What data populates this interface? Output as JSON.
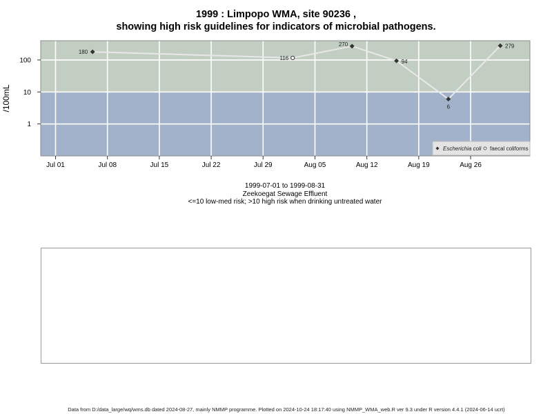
{
  "title_line1": "1999 : Limpopo WMA, site 90236 ,",
  "title_line2": "showing high risk guidelines for indicators of microbial pathogens.",
  "subtitle": {
    "date_range": "1999-07-01 to 1999-08-31",
    "site_name": "Zeekoegat Sewage Effluent",
    "risk_note": "<=10 low-med risk; >10 high risk when drinking untreated water"
  },
  "footer": "Data from D:/data_large/wq/wms.db dated 2024-08-27, mainly NMMP programme. Plotted on 2024-10-24 18:17:40 using NMMP_WMA_web.R ver 9.3 under R version 4.4.1 (2024-06-14 ucrt)",
  "chart_data": {
    "type": "line",
    "ylabel": "/100mL",
    "y_scale": "log10",
    "xlim": [
      "1999-06-29",
      "1999-09-03"
    ],
    "ylim": [
      0.1,
      400
    ],
    "x_ticks": [
      "1999-07-01",
      "1999-07-08",
      "1999-07-15",
      "1999-07-22",
      "1999-07-29",
      "1999-08-05",
      "1999-08-12",
      "1999-08-19",
      "1999-08-26"
    ],
    "x_tick_labels": [
      "Jul 01",
      "Jul 08",
      "Jul 15",
      "Jul 22",
      "Jul 29",
      "Aug 05",
      "Aug 12",
      "Aug 19",
      "Aug 26"
    ],
    "y_ticks": [
      1,
      10,
      100
    ],
    "y_tick_labels": [
      "1",
      "10",
      "100"
    ],
    "threshold": 10,
    "zone_colors": {
      "high_risk": "#c3cec3",
      "low_med_risk": "#a2b2cb"
    },
    "grid": true,
    "legend_position": "bottom-right",
    "series": [
      {
        "name": "Escherichia coli",
        "marker": "filled-diamond",
        "color": "#333333",
        "points": [
          {
            "x": "1999-07-06",
            "y": 180,
            "label": "180"
          },
          {
            "x": "1999-08-10",
            "y": 270,
            "label": "270"
          },
          {
            "x": "1999-08-16",
            "y": 94,
            "label": "94"
          },
          {
            "x": "1999-08-23",
            "y": 6,
            "label": "6"
          },
          {
            "x": "1999-08-30",
            "y": 279,
            "label": "279"
          }
        ]
      },
      {
        "name": "faecal coliforms",
        "marker": "open-circle",
        "color": "#333333",
        "points": [
          {
            "x": "1999-08-02",
            "y": 116,
            "label": "116"
          }
        ]
      }
    ],
    "line_color": "#e8e8e8"
  }
}
